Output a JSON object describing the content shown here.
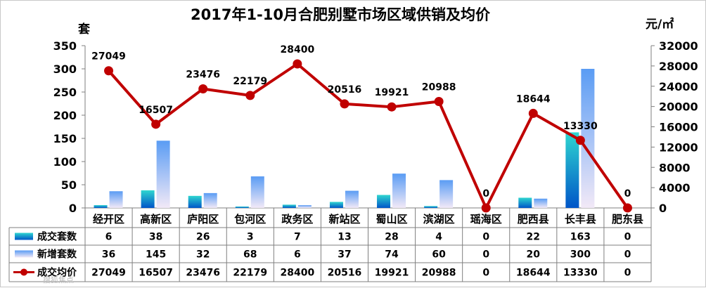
{
  "chart_data": {
    "type": "bar",
    "title": "2017年1-10月合肥别墅市场区域供销及均价",
    "left_unit": "套",
    "right_unit": "元/㎡",
    "categories": [
      "经开区",
      "高新区",
      "庐阳区",
      "包河区",
      "政务区",
      "新站区",
      "蜀山区",
      "滨湖区",
      "瑶海区",
      "肥西县",
      "长丰县",
      "肥东县"
    ],
    "ylim_left": [
      0,
      350
    ],
    "yticks_left": [
      0,
      50,
      100,
      150,
      200,
      250,
      300,
      350
    ],
    "ylim_right": [
      0,
      32000
    ],
    "yticks_right": [
      0,
      4000,
      8000,
      12000,
      16000,
      20000,
      24000,
      28000,
      32000
    ],
    "series": [
      {
        "name": "成交套数",
        "kind": "bar",
        "axis": "left",
        "color": "#00a8b0",
        "values": [
          6,
          38,
          26,
          3,
          7,
          13,
          28,
          4,
          0,
          22,
          163,
          0
        ]
      },
      {
        "name": "新增套数",
        "kind": "bar",
        "axis": "left",
        "color": "#5c9ef5",
        "values": [
          36,
          145,
          32,
          68,
          6,
          37,
          74,
          60,
          0,
          20,
          300,
          0
        ]
      },
      {
        "name": "成交均价",
        "kind": "line",
        "axis": "right",
        "color": "#c00000",
        "values": [
          27049,
          16507,
          23476,
          22179,
          28400,
          20516,
          19921,
          20988,
          0,
          18644,
          13330,
          0
        ]
      }
    ],
    "grid": false,
    "legend": "table-bottom"
  },
  "watermark": "搜狐焦点"
}
